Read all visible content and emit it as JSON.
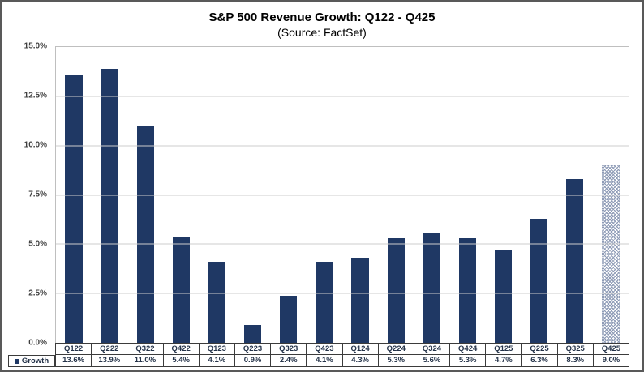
{
  "header": {
    "title": "S&P 500 Revenue Growth: Q122 - Q425",
    "subtitle": "(Source: FactSet)"
  },
  "legend": {
    "label": "Growth"
  },
  "chart_data": {
    "type": "bar",
    "title": "S&P 500 Revenue Growth: Q122 - Q425",
    "subtitle": "(Source: FactSet)",
    "series_name": "Growth",
    "categories": [
      "Q122",
      "Q222",
      "Q322",
      "Q422",
      "Q123",
      "Q223",
      "Q323",
      "Q423",
      "Q124",
      "Q224",
      "Q324",
      "Q424",
      "Q125",
      "Q225",
      "Q325",
      "Q425"
    ],
    "values": [
      13.6,
      13.9,
      11.0,
      5.4,
      4.1,
      0.9,
      2.4,
      4.1,
      4.3,
      5.3,
      5.6,
      5.3,
      4.7,
      6.3,
      8.3,
      9.0
    ],
    "value_labels": [
      "13.6%",
      "13.9%",
      "11.0%",
      "5.4%",
      "4.1%",
      "0.9%",
      "2.4%",
      "4.1%",
      "4.3%",
      "5.3%",
      "5.6%",
      "5.3%",
      "4.7%",
      "6.3%",
      "8.3%",
      "9.0%"
    ],
    "xlabel": "",
    "ylabel": "",
    "ylim": [
      0,
      15
    ],
    "y_tick_step": 2.5,
    "y_tick_labels_top_to_bottom": [
      "15.0%",
      "12.5%",
      "10.0%",
      "7.5%",
      "5.0%",
      "2.5%",
      "0.0%"
    ],
    "grid": true,
    "legend_position": "bottom-left",
    "bar_color": "#1F3864",
    "hatched_categories": [
      "Q425"
    ],
    "hatch_color": "#8E9BB6"
  }
}
